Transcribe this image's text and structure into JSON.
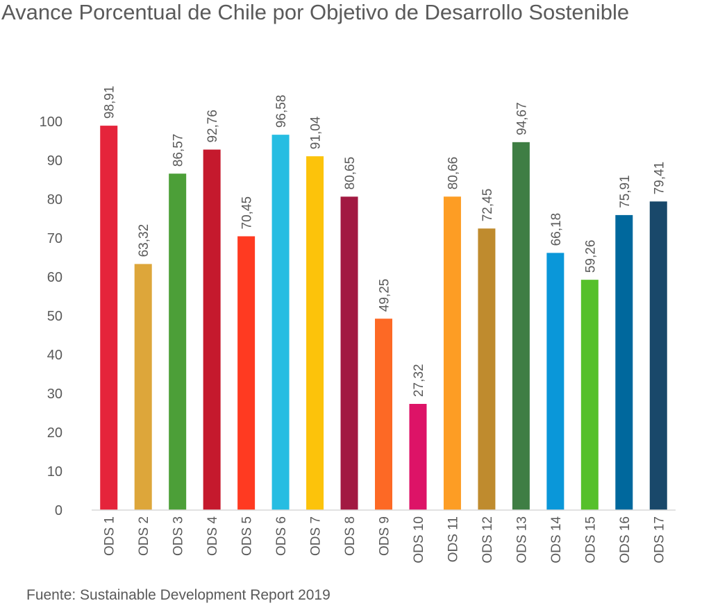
{
  "title": "Avance Porcentual de Chile por Objetivo de Desarrollo Sostenible",
  "source": "Fuente: Sustainable Development Report 2019",
  "chart_data": {
    "type": "bar",
    "title": "Avance Porcentual de Chile por Objetivo de Desarrollo Sostenible",
    "xlabel": "",
    "ylabel": "",
    "categories": [
      "ODS 1",
      "ODS 2",
      "ODS 3",
      "ODS 4",
      "ODS 5",
      "ODS 6",
      "ODS 7",
      "ODS 8",
      "ODS 9",
      "ODS 10",
      "ODS 11",
      "ODS 12",
      "ODS 13",
      "ODS 14",
      "ODS 15",
      "ODS 16",
      "ODS 17"
    ],
    "values": [
      98.91,
      63.32,
      86.57,
      92.76,
      70.45,
      96.58,
      91.04,
      80.65,
      49.25,
      27.32,
      80.66,
      72.45,
      94.67,
      66.18,
      59.26,
      75.91,
      79.41
    ],
    "value_labels": [
      "98,91",
      "63,32",
      "86,57",
      "92,76",
      "70,45",
      "96,58",
      "91,04",
      "80,65",
      "49,25",
      "27,32",
      "80,66",
      "72,45",
      "94,67",
      "66,18",
      "59,26",
      "75,91",
      "79,41"
    ],
    "colors": [
      "#e5243b",
      "#dda63a",
      "#4c9f38",
      "#c5192d",
      "#ff3a21",
      "#26bde2",
      "#fcc30b",
      "#a21942",
      "#fd6925",
      "#dd1367",
      "#fd9d24",
      "#bf8b2e",
      "#3f7e44",
      "#0a97d9",
      "#56c02b",
      "#00689d",
      "#19486a"
    ],
    "yticks": [
      "0",
      "10",
      "20",
      "30",
      "40",
      "50",
      "60",
      "70",
      "80",
      "90",
      "100"
    ],
    "ylim": [
      0,
      100
    ],
    "grid": false,
    "legend": "none"
  }
}
